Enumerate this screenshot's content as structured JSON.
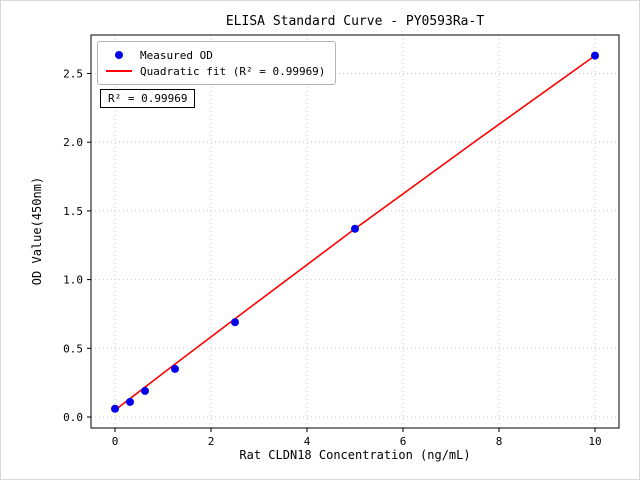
{
  "chart_data": {
    "type": "scatter",
    "title": "ELISA Standard Curve - PY0593Ra-T",
    "xlabel": "Rat CLDN18 Concentration (ng/mL)",
    "ylabel": "OD Value(450nm)",
    "legend": {
      "measured": "Measured OD",
      "fit": "Quadratic fit (R² = 0.99969)"
    },
    "annotation": "R² = 0.99969",
    "r_squared": 0.99969,
    "points": {
      "x": [
        0,
        0.3125,
        0.625,
        1.25,
        2.5,
        5,
        10
      ],
      "y": [
        0.06,
        0.11,
        0.19,
        0.35,
        0.69,
        1.37,
        2.63
      ]
    },
    "fit_line": {
      "x": [
        0,
        1.25,
        2.5,
        5,
        7.5,
        10
      ],
      "y": [
        0.05,
        0.385,
        0.715,
        1.37,
        2.005,
        2.63
      ]
    },
    "xlim": [
      -0.5,
      10.5
    ],
    "ylim": [
      -0.08,
      2.78
    ],
    "xticks": {
      "values": [
        0,
        2,
        4,
        6,
        8,
        10
      ],
      "labels": [
        "0",
        "2",
        "4",
        "6",
        "8",
        "10"
      ]
    },
    "yticks": {
      "values": [
        0,
        0.5,
        1,
        1.5,
        2,
        2.5
      ],
      "labels": [
        "0.0",
        "0.5",
        "1.0",
        "1.5",
        "2.0",
        "2.5"
      ]
    },
    "grid": true,
    "legend_position": "upper left",
    "colors": {
      "point": "#0000ee",
      "line": "#ff0000",
      "grid": "#c8c8c8",
      "axis": "#000000"
    }
  }
}
